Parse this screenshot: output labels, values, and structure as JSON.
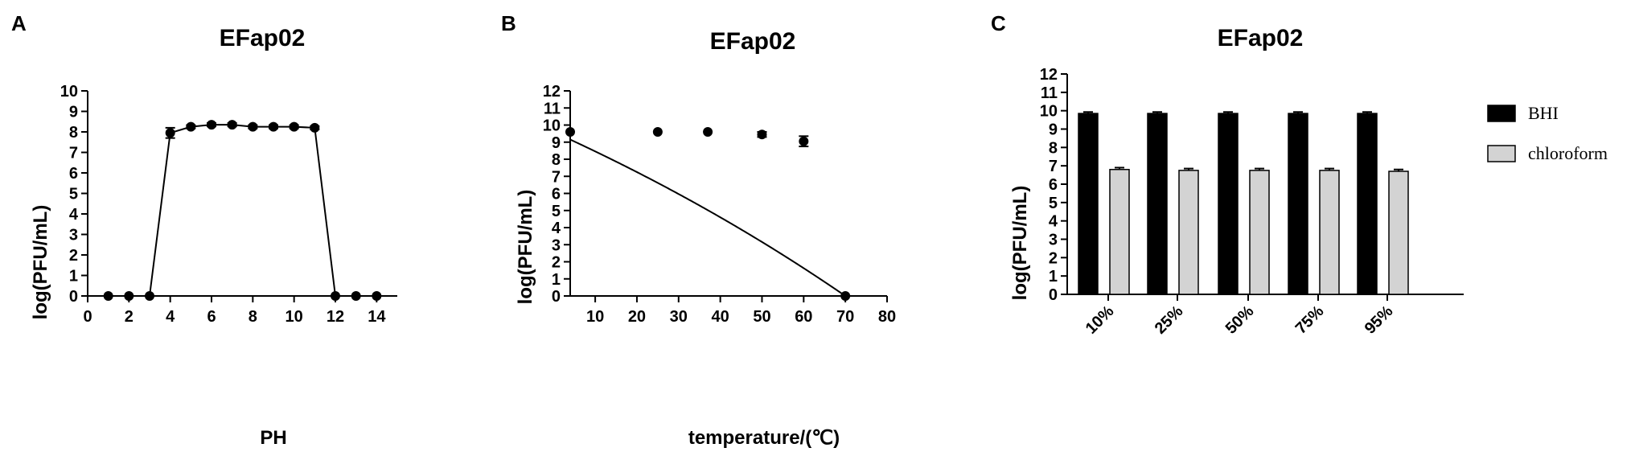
{
  "panel_letters": [
    "A",
    "B",
    "C"
  ],
  "colors": {
    "bhi": "#000000",
    "chloroform": "#d3d3d3",
    "line": "#000000"
  },
  "chart_data": [
    {
      "type": "line",
      "panel": "A",
      "title": "EFap02",
      "xlabel": "PH",
      "ylabel": "log(PFU/mL)",
      "xlim": [
        0,
        15
      ],
      "ylim": [
        0,
        10
      ],
      "xticks": [
        0,
        2,
        4,
        6,
        8,
        10,
        12,
        14
      ],
      "yticks": [
        0,
        1,
        2,
        3,
        4,
        5,
        6,
        7,
        8,
        9,
        10
      ],
      "x": [
        1,
        2,
        3,
        4,
        5,
        6,
        7,
        8,
        9,
        10,
        11,
        12,
        13,
        14
      ],
      "y": [
        0,
        0,
        0,
        7.95,
        8.25,
        8.35,
        8.35,
        8.25,
        8.25,
        8.25,
        8.2,
        0,
        0,
        0
      ],
      "error": [
        0,
        0,
        0,
        0.25,
        0.08,
        0.08,
        0.08,
        0.08,
        0.08,
        0.08,
        0.08,
        0,
        0,
        0
      ]
    },
    {
      "type": "line",
      "panel": "B",
      "title": "EFap02",
      "xlabel": "temperature/(℃)",
      "ylabel": "log(PFU/mL)",
      "xlim": [
        4,
        80
      ],
      "ylim": [
        0,
        12
      ],
      "xticks": [
        10,
        20,
        30,
        40,
        50,
        60,
        70,
        80
      ],
      "yticks": [
        0,
        1,
        2,
        3,
        4,
        5,
        6,
        7,
        8,
        9,
        10,
        11,
        12
      ],
      "x": [
        4,
        25,
        37,
        50,
        60,
        70
      ],
      "y": [
        9.6,
        9.6,
        9.6,
        9.45,
        9.05,
        0
      ],
      "error": [
        0,
        0,
        0,
        0.15,
        0.3,
        0
      ]
    },
    {
      "type": "bar",
      "panel": "C",
      "title": "EFap02",
      "ylabel": "log(PFU/mL)",
      "ylim": [
        0,
        12
      ],
      "yticks": [
        0,
        1,
        2,
        3,
        4,
        5,
        6,
        7,
        8,
        9,
        10,
        11,
        12
      ],
      "categories": [
        "10%",
        "25%",
        "50%",
        "75%",
        "95%"
      ],
      "series": [
        {
          "name": "BHI",
          "values": [
            9.85,
            9.85,
            9.85,
            9.85,
            9.85
          ],
          "error": [
            0.08,
            0.08,
            0.08,
            0.08,
            0.08
          ]
        },
        {
          "name": "chloroform",
          "values": [
            6.8,
            6.75,
            6.75,
            6.75,
            6.7
          ],
          "error": [
            0.1,
            0.1,
            0.1,
            0.1,
            0.1
          ]
        }
      ],
      "legend_position": "top-right"
    }
  ]
}
